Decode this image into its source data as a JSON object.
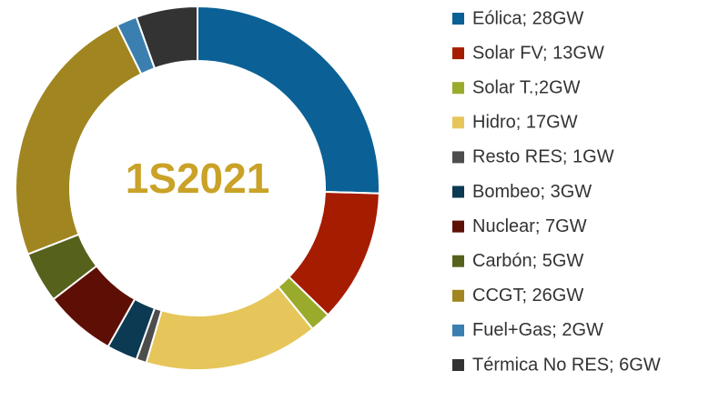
{
  "chart_data": {
    "type": "donut",
    "title": "1S2021",
    "categories": [
      "Eólica; 28GW",
      "Solar FV; 13GW",
      "Solar T.;2GW",
      "Hidro; 17GW",
      "Resto RES; 1GW",
      "Bombeo; 3GW",
      "Nuclear; 7GW",
      "Carbón; 5GW",
      "CCGT; 26GW",
      "Fuel+Gas; 2GW",
      "Térmica No RES; 6GW"
    ],
    "values": [
      28,
      13,
      2,
      17,
      1,
      3,
      7,
      5,
      26,
      2,
      6
    ],
    "colors": [
      "#0b6195",
      "#a61c00",
      "#9aab2c",
      "#e6c65a",
      "#4d4d4d",
      "#0b3a52",
      "#5e0f05",
      "#56621c",
      "#a08520",
      "#3a7fb0",
      "#333333"
    ],
    "legend": "right"
  }
}
